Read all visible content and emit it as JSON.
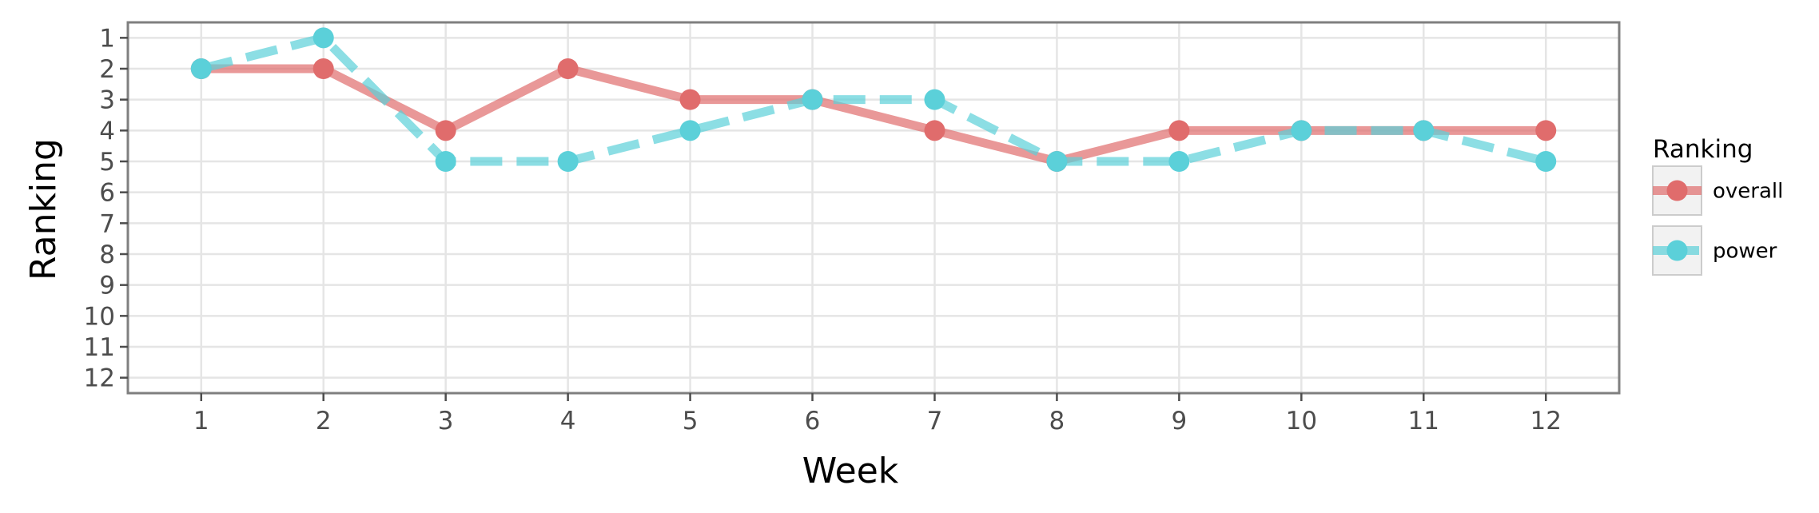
{
  "chart_data": {
    "type": "line",
    "title": "",
    "xlabel": "Week",
    "ylabel": "Ranking",
    "x": [
      1,
      2,
      3,
      4,
      5,
      6,
      7,
      8,
      9,
      10,
      11,
      12
    ],
    "xticks": [
      "1",
      "2",
      "3",
      "4",
      "5",
      "6",
      "7",
      "8",
      "9",
      "10",
      "11",
      "12"
    ],
    "yticks": [
      "1",
      "2",
      "3",
      "4",
      "5",
      "6",
      "7",
      "8",
      "9",
      "10",
      "11",
      "12"
    ],
    "xlim": [
      0.4,
      12.6
    ],
    "ylim": [
      12.5,
      0.5
    ],
    "y_reversed": true,
    "grid": true,
    "legend": {
      "title": "Ranking",
      "placement": "right"
    },
    "series": [
      {
        "name": "overall",
        "color": "#e06c6c",
        "line_style": "solid",
        "values": [
          2,
          2,
          4,
          2,
          3,
          3,
          4,
          5,
          4,
          4,
          4,
          4
        ]
      },
      {
        "name": "power",
        "color": "#5bd0d9",
        "line_style": "dashed",
        "values": [
          2,
          1,
          5,
          5,
          4,
          3,
          3,
          5,
          5,
          4,
          4,
          5
        ]
      }
    ]
  }
}
